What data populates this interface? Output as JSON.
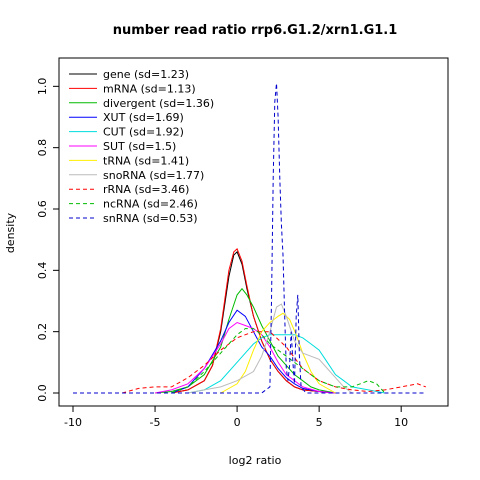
{
  "chart_data": {
    "type": "line",
    "title": "number read ratio rrp6.G1.2/xrn1.G1.1",
    "xlabel": "log2 ratio",
    "ylabel": "density",
    "xlim": [
      -10,
      12
    ],
    "ylim": [
      0,
      1.05
    ],
    "xticks": [
      -10,
      -5,
      0,
      5,
      10
    ],
    "yticks": [
      0.0,
      0.2,
      0.4,
      0.6,
      0.8,
      1.0
    ],
    "ytick_labels": [
      "0.0",
      "0.2",
      "0.4",
      "0.6",
      "0.8",
      "1.0"
    ],
    "legend_position": "top-left",
    "series": [
      {
        "name": "gene (sd=1.23)",
        "color": "#000000",
        "dash": "solid",
        "x": [
          -4,
          -3,
          -2,
          -1.5,
          -1,
          -0.5,
          -0.2,
          0,
          0.3,
          0.6,
          1,
          1.5,
          2,
          2.5,
          3,
          3.5,
          4,
          5,
          6
        ],
        "y": [
          0,
          0.01,
          0.04,
          0.09,
          0.2,
          0.38,
          0.45,
          0.46,
          0.42,
          0.34,
          0.25,
          0.17,
          0.11,
          0.07,
          0.04,
          0.02,
          0.01,
          0.005,
          0
        ]
      },
      {
        "name": "mRNA (sd=1.13)",
        "color": "#ff0000",
        "dash": "solid",
        "x": [
          -4,
          -3,
          -2,
          -1.5,
          -1,
          -0.5,
          -0.2,
          0,
          0.3,
          0.6,
          1,
          1.5,
          2,
          2.5,
          3,
          3.5,
          4,
          5,
          6
        ],
        "y": [
          0,
          0.01,
          0.04,
          0.09,
          0.21,
          0.4,
          0.46,
          0.47,
          0.43,
          0.35,
          0.25,
          0.17,
          0.11,
          0.07,
          0.04,
          0.02,
          0.01,
          0.005,
          0
        ]
      },
      {
        "name": "divergent (sd=1.36)",
        "color": "#00bb00",
        "dash": "solid",
        "x": [
          -5,
          -4,
          -3,
          -2,
          -1,
          -0.5,
          0,
          0.3,
          0.6,
          1,
          1.5,
          2,
          2.5,
          3,
          3.5,
          4,
          4.5,
          5,
          6
        ],
        "y": [
          0,
          0.005,
          0.02,
          0.06,
          0.15,
          0.24,
          0.32,
          0.34,
          0.32,
          0.28,
          0.22,
          0.17,
          0.12,
          0.09,
          0.06,
          0.04,
          0.02,
          0.01,
          0
        ]
      },
      {
        "name": "XUT (sd=1.69)",
        "color": "#0000ff",
        "dash": "solid",
        "x": [
          -4,
          -3,
          -2,
          -1,
          -0.5,
          0,
          0.5,
          1,
          1.5,
          2,
          2.5,
          3,
          3.5,
          4,
          5,
          6
        ],
        "y": [
          0,
          0.02,
          0.08,
          0.17,
          0.23,
          0.27,
          0.25,
          0.2,
          0.15,
          0.12,
          0.08,
          0.05,
          0.03,
          0.015,
          0.005,
          0
        ]
      },
      {
        "name": "CUT (sd=1.92)",
        "color": "#00dddd",
        "dash": "solid",
        "x": [
          -3,
          -2,
          -1,
          0,
          0.5,
          1,
          1.5,
          2,
          2.5,
          3,
          3.5,
          4,
          4.5,
          5,
          5.5,
          6,
          6.5,
          7,
          8,
          9
        ],
        "y": [
          0,
          0.01,
          0.04,
          0.1,
          0.13,
          0.16,
          0.18,
          0.19,
          0.19,
          0.19,
          0.19,
          0.18,
          0.16,
          0.14,
          0.1,
          0.06,
          0.04,
          0.02,
          0.01,
          0
        ]
      },
      {
        "name": "SUT (sd=1.5)",
        "color": "#ff00ff",
        "dash": "solid",
        "x": [
          -5,
          -4,
          -3,
          -2,
          -1,
          -0.5,
          0,
          0.5,
          1,
          1.5,
          2,
          2.5,
          3,
          3.5,
          4,
          5,
          6
        ],
        "y": [
          0,
          0.01,
          0.03,
          0.08,
          0.16,
          0.21,
          0.23,
          0.22,
          0.21,
          0.19,
          0.15,
          0.1,
          0.06,
          0.04,
          0.02,
          0.005,
          0
        ]
      },
      {
        "name": "tRNA (sd=1.41)",
        "color": "#ffee00",
        "dash": "solid",
        "x": [
          -1,
          0,
          0.5,
          1,
          1.5,
          2,
          2.5,
          2.8,
          3.2,
          3.6,
          4,
          4.5,
          5,
          6
        ],
        "y": [
          0,
          0.03,
          0.07,
          0.14,
          0.2,
          0.23,
          0.25,
          0.26,
          0.24,
          0.19,
          0.13,
          0.07,
          0.03,
          0
        ]
      },
      {
        "name": "snoRNA (sd=1.77)",
        "color": "#bbbbbb",
        "dash": "solid",
        "x": [
          -3,
          -2,
          -1,
          0,
          1,
          1.5,
          2,
          2.4,
          2.7,
          3,
          3.5,
          4,
          4.5,
          5,
          5.5,
          6,
          6.5,
          7
        ],
        "y": [
          0,
          0.01,
          0.02,
          0.04,
          0.07,
          0.12,
          0.2,
          0.28,
          0.29,
          0.25,
          0.17,
          0.13,
          0.12,
          0.11,
          0.08,
          0.05,
          0.02,
          0
        ]
      },
      {
        "name": "rRNA (sd=3.46)",
        "color": "#ff0000",
        "dash": "dashed",
        "x": [
          -7,
          -6,
          -5,
          -4,
          -3,
          -2,
          -1,
          0,
          1,
          2,
          3,
          4,
          5,
          6,
          7,
          8,
          9,
          10,
          11,
          11.5
        ],
        "y": [
          0,
          0.015,
          0.02,
          0.02,
          0.05,
          0.09,
          0.14,
          0.18,
          0.2,
          0.2,
          0.15,
          0.08,
          0.04,
          0.02,
          0.01,
          0.005,
          0.01,
          0.02,
          0.03,
          0.02
        ]
      },
      {
        "name": "ncRNA (sd=2.46)",
        "color": "#00bb00",
        "dash": "dashed",
        "x": [
          -4,
          -3,
          -2,
          -1,
          0,
          0.5,
          1,
          1.5,
          2,
          2.5,
          3,
          4,
          5,
          6,
          7,
          7.5,
          8,
          8.5,
          9
        ],
        "y": [
          0,
          0.02,
          0.07,
          0.13,
          0.19,
          0.21,
          0.21,
          0.19,
          0.16,
          0.14,
          0.12,
          0.08,
          0.04,
          0.02,
          0.02,
          0.03,
          0.04,
          0.03,
          0
        ]
      },
      {
        "name": "snRNA (sd=0.53)",
        "color": "#0000cc",
        "dash": "dashed",
        "x": [
          -10,
          1.5,
          2.0,
          2.1,
          2.2,
          2.3,
          2.4,
          2.5,
          2.6,
          2.7,
          2.8,
          2.9,
          3.0,
          3.1,
          3.2,
          3.3,
          3.4,
          3.5,
          3.6,
          3.7,
          3.8,
          3.9,
          4.2,
          11.5
        ],
        "y": [
          0,
          0,
          0.02,
          0.3,
          0.7,
          0.95,
          1.01,
          0.9,
          0.7,
          0.55,
          0.45,
          0.25,
          0.08,
          0.04,
          0.09,
          0.2,
          0.1,
          0.03,
          0.25,
          0.32,
          0.12,
          0.02,
          0,
          0
        ]
      }
    ]
  }
}
